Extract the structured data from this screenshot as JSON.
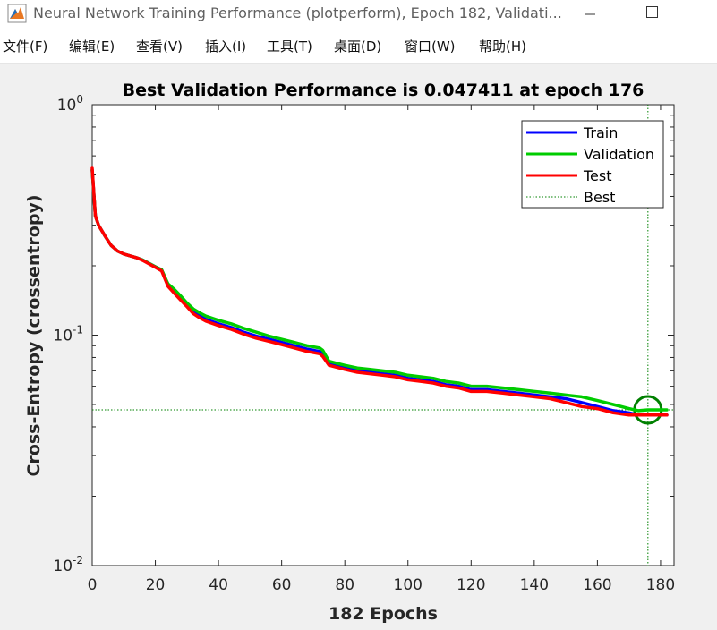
{
  "window": {
    "title": "Neural Network Training Performance (plotperform), Epoch 182, Validati...",
    "app_icon": "matlab-icon",
    "controls": [
      "minimize-icon",
      "maximize-icon"
    ]
  },
  "menu": {
    "items": [
      {
        "id": "file",
        "label": "文件(F)"
      },
      {
        "id": "edit",
        "label": "编辑(E)"
      },
      {
        "id": "view",
        "label": "查看(V)"
      },
      {
        "id": "insert",
        "label": "插入(I)"
      },
      {
        "id": "tools",
        "label": "工具(T)"
      },
      {
        "id": "desktop",
        "label": "桌面(D)"
      },
      {
        "id": "window",
        "label": "窗口(W)"
      },
      {
        "id": "help",
        "label": "帮助(H)"
      }
    ]
  },
  "chart_data": {
    "type": "line",
    "title": "Best Validation Performance is 0.047411 at epoch 176",
    "xlabel": "182 Epochs",
    "ylabel": "Cross-Entropy  (crossentropy)",
    "xlim": [
      0,
      182
    ],
    "ylim": [
      0.01,
      1
    ],
    "yscale": "log",
    "xticks": [
      0,
      20,
      40,
      60,
      80,
      100,
      120,
      140,
      160,
      180
    ],
    "yticks": [
      {
        "value": 1,
        "base": "10",
        "exp": "0"
      },
      {
        "value": 0.1,
        "base": "10",
        "exp": "-1"
      },
      {
        "value": 0.01,
        "base": "10",
        "exp": "-2"
      }
    ],
    "grid": false,
    "legend_position": "top-right",
    "best": {
      "epoch": 176,
      "value": 0.047411,
      "color": "#008000"
    },
    "series": [
      {
        "name": "Train",
        "color": "#0000ff",
        "x": [
          0,
          1,
          2,
          4,
          6,
          8,
          10,
          14,
          16,
          20,
          22,
          24,
          26,
          28,
          30,
          32,
          34,
          36,
          40,
          44,
          48,
          52,
          56,
          60,
          64,
          68,
          72,
          73,
          75,
          80,
          84,
          88,
          92,
          96,
          100,
          104,
          108,
          112,
          116,
          120,
          125,
          130,
          135,
          140,
          145,
          150,
          155,
          160,
          165,
          170,
          173,
          176,
          180,
          182
        ],
        "y": [
          0.52,
          0.33,
          0.3,
          0.27,
          0.245,
          0.232,
          0.225,
          0.217,
          0.212,
          0.198,
          0.192,
          0.165,
          0.155,
          0.145,
          0.135,
          0.126,
          0.121,
          0.117,
          0.112,
          0.108,
          0.103,
          0.099,
          0.096,
          0.093,
          0.09,
          0.087,
          0.085,
          0.083,
          0.075,
          0.072,
          0.07,
          0.069,
          0.068,
          0.067,
          0.065,
          0.064,
          0.063,
          0.061,
          0.06,
          0.058,
          0.058,
          0.057,
          0.056,
          0.055,
          0.054,
          0.053,
          0.051,
          0.049,
          0.047,
          0.046,
          0.045,
          0.045,
          0.045,
          0.045
        ]
      },
      {
        "name": "Validation",
        "color": "#00cc00",
        "x": [
          0,
          1,
          2,
          4,
          6,
          8,
          10,
          14,
          16,
          20,
          22,
          24,
          26,
          28,
          30,
          32,
          34,
          36,
          40,
          44,
          48,
          52,
          56,
          60,
          64,
          68,
          72,
          73,
          75,
          80,
          84,
          88,
          92,
          96,
          100,
          104,
          108,
          112,
          116,
          120,
          125,
          130,
          135,
          140,
          145,
          150,
          155,
          160,
          165,
          170,
          173,
          176,
          180,
          182
        ],
        "y": [
          0.52,
          0.33,
          0.3,
          0.27,
          0.245,
          0.232,
          0.225,
          0.217,
          0.212,
          0.198,
          0.192,
          0.167,
          0.158,
          0.148,
          0.138,
          0.13,
          0.125,
          0.121,
          0.116,
          0.112,
          0.107,
          0.103,
          0.099,
          0.096,
          0.093,
          0.09,
          0.088,
          0.086,
          0.077,
          0.074,
          0.072,
          0.071,
          0.07,
          0.069,
          0.067,
          0.066,
          0.065,
          0.063,
          0.062,
          0.06,
          0.06,
          0.059,
          0.058,
          0.057,
          0.056,
          0.055,
          0.054,
          0.052,
          0.05,
          0.048,
          0.047,
          0.0474,
          0.0474,
          0.0474
        ]
      },
      {
        "name": "Test",
        "color": "#ff0000",
        "x": [
          0,
          1,
          2,
          4,
          6,
          8,
          10,
          14,
          16,
          20,
          22,
          24,
          26,
          28,
          30,
          32,
          34,
          36,
          40,
          44,
          48,
          52,
          56,
          60,
          64,
          68,
          72,
          73,
          75,
          80,
          84,
          88,
          92,
          96,
          100,
          104,
          108,
          112,
          116,
          120,
          125,
          130,
          135,
          140,
          145,
          150,
          155,
          160,
          165,
          170,
          173,
          176,
          180,
          182
        ],
        "y": [
          0.53,
          0.33,
          0.3,
          0.27,
          0.245,
          0.232,
          0.225,
          0.217,
          0.211,
          0.197,
          0.19,
          0.163,
          0.152,
          0.142,
          0.133,
          0.124,
          0.119,
          0.115,
          0.11,
          0.106,
          0.101,
          0.097,
          0.094,
          0.091,
          0.088,
          0.085,
          0.083,
          0.081,
          0.074,
          0.071,
          0.069,
          0.068,
          0.067,
          0.066,
          0.064,
          0.063,
          0.062,
          0.06,
          0.059,
          0.057,
          0.057,
          0.056,
          0.055,
          0.054,
          0.053,
          0.051,
          0.049,
          0.048,
          0.046,
          0.045,
          0.045,
          0.045,
          0.045,
          0.045
        ]
      }
    ],
    "legend": [
      "Train",
      "Validation",
      "Test",
      "Best"
    ]
  }
}
